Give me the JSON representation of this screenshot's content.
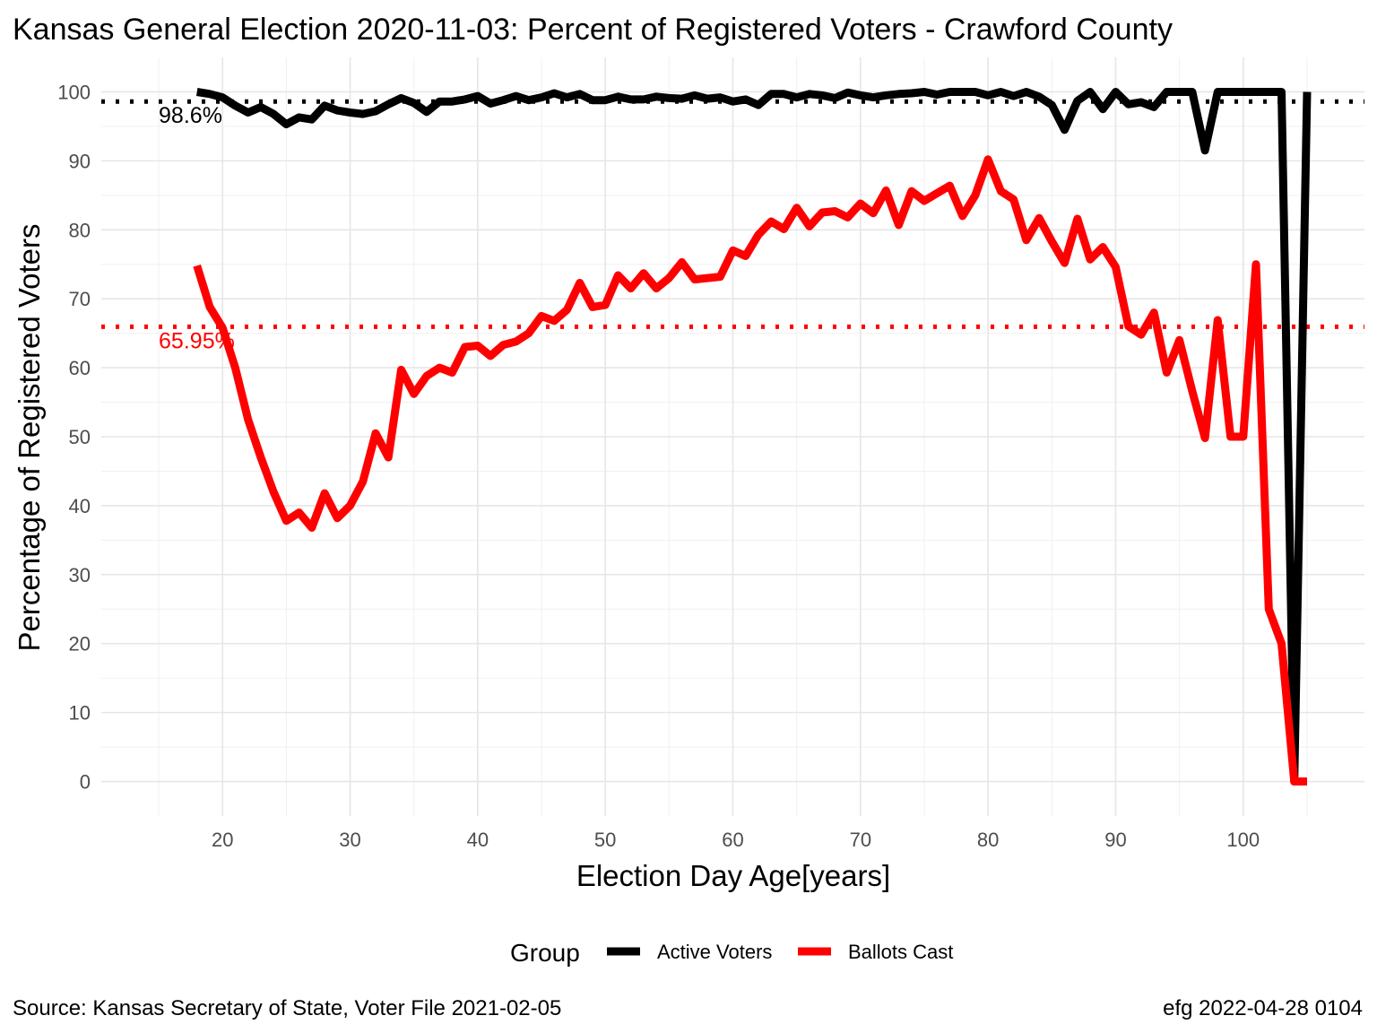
{
  "chart_data": {
    "type": "line",
    "title": "Kansas General Election 2020-11-03:  Percent of Registered Voters - Crawford County",
    "xlabel": "Election Day Age[years]",
    "ylabel": "Percentage of Registered Voters",
    "xlim": [
      10.5,
      109.5
    ],
    "ylim": [
      -5,
      105
    ],
    "xticks": [
      20,
      30,
      40,
      50,
      60,
      70,
      80,
      90,
      100
    ],
    "yticks": [
      0,
      10,
      20,
      30,
      40,
      50,
      60,
      70,
      80,
      90,
      100
    ],
    "grid": true,
    "legend": {
      "title": "Group",
      "position": "bottom"
    },
    "reference_lines": [
      {
        "y": 98.6,
        "label": "98.6%",
        "color": "#000000"
      },
      {
        "y": 65.95,
        "label": "65.95%",
        "color": "#ff0000"
      }
    ],
    "series": [
      {
        "name": "Active Voters",
        "color": "#000000",
        "x": [
          18,
          19,
          20,
          21,
          22,
          23,
          24,
          25,
          26,
          27,
          28,
          29,
          30,
          31,
          32,
          33,
          34,
          35,
          36,
          37,
          38,
          39,
          40,
          41,
          42,
          43,
          44,
          45,
          46,
          47,
          48,
          49,
          50,
          51,
          52,
          53,
          54,
          55,
          56,
          57,
          58,
          59,
          60,
          61,
          62,
          63,
          64,
          65,
          66,
          67,
          68,
          69,
          70,
          71,
          72,
          73,
          74,
          75,
          76,
          77,
          78,
          79,
          80,
          81,
          82,
          83,
          84,
          85,
          86,
          87,
          88,
          89,
          90,
          91,
          92,
          93,
          94,
          95,
          96,
          97,
          98,
          99,
          100,
          101,
          102,
          103,
          104,
          105
        ],
        "values": [
          100,
          99.7,
          99.2,
          98,
          97,
          97.8,
          96.8,
          95.3,
          96.3,
          96,
          98,
          97.3,
          97,
          96.8,
          97.2,
          98.2,
          99.1,
          98.4,
          97.1,
          98.6,
          98.6,
          98.9,
          99.4,
          98.3,
          98.8,
          99.4,
          98.8,
          99.2,
          99.8,
          99.2,
          99.7,
          98.8,
          98.8,
          99.3,
          98.9,
          98.9,
          99.3,
          99.1,
          99,
          99.5,
          99,
          99.2,
          98.6,
          98.9,
          98.1,
          99.7,
          99.7,
          99.2,
          99.7,
          99.5,
          99.1,
          99.9,
          99.5,
          99.2,
          99.5,
          99.7,
          99.8,
          100,
          99.6,
          100,
          100,
          100,
          99.5,
          100,
          99.4,
          100,
          99.3,
          98.1,
          94.5,
          98.7,
          100,
          97.5,
          100,
          98.2,
          98.5,
          97.8,
          100,
          100,
          100,
          91.5,
          100,
          100,
          100,
          100,
          100,
          100,
          0,
          100
        ]
      },
      {
        "name": "Ballots Cast",
        "color": "#ff0000",
        "x": [
          18,
          19,
          20,
          21,
          22,
          23,
          24,
          25,
          26,
          27,
          28,
          29,
          30,
          31,
          32,
          33,
          34,
          35,
          36,
          37,
          38,
          39,
          40,
          41,
          42,
          43,
          44,
          45,
          46,
          47,
          48,
          49,
          50,
          51,
          52,
          53,
          54,
          55,
          56,
          57,
          58,
          59,
          60,
          61,
          62,
          63,
          64,
          65,
          66,
          67,
          68,
          69,
          70,
          71,
          72,
          73,
          74,
          75,
          76,
          77,
          78,
          79,
          80,
          81,
          82,
          83,
          84,
          85,
          86,
          87,
          88,
          89,
          90,
          91,
          92,
          93,
          94,
          95,
          96,
          97,
          98,
          99,
          100,
          101,
          102,
          103,
          104,
          105
        ],
        "values": [
          74.8,
          68.8,
          65.8,
          60,
          52.5,
          47,
          42,
          37.8,
          39,
          36.8,
          41.8,
          38.2,
          40,
          43.5,
          50.5,
          47,
          59.7,
          56.2,
          58.8,
          60,
          59.3,
          63,
          63.2,
          61.7,
          63.3,
          63.8,
          65,
          67.5,
          66.8,
          68.4,
          72.3,
          68.8,
          69.1,
          73.4,
          71.5,
          73.7,
          71.5,
          73,
          75.3,
          72.8,
          73,
          73.2,
          77,
          76.2,
          79.3,
          81.2,
          80.1,
          83.2,
          80.5,
          82.5,
          82.7,
          81.8,
          83.8,
          82.4,
          85.7,
          80.7,
          85.6,
          84.2,
          85.3,
          86.4,
          82,
          85,
          90.2,
          85.6,
          84.4,
          78.5,
          81.7,
          78.3,
          75.2,
          81.6,
          75.7,
          77.5,
          74.6,
          66,
          64.8,
          68,
          59.3,
          64,
          56.6,
          49.8,
          66.9,
          50,
          50,
          75,
          25,
          20,
          0,
          0
        ]
      }
    ]
  },
  "caption_left": "Source:  Kansas Secretary of State, Voter File  2021-02-05",
  "caption_right": "efg 2022-04-28 0104"
}
